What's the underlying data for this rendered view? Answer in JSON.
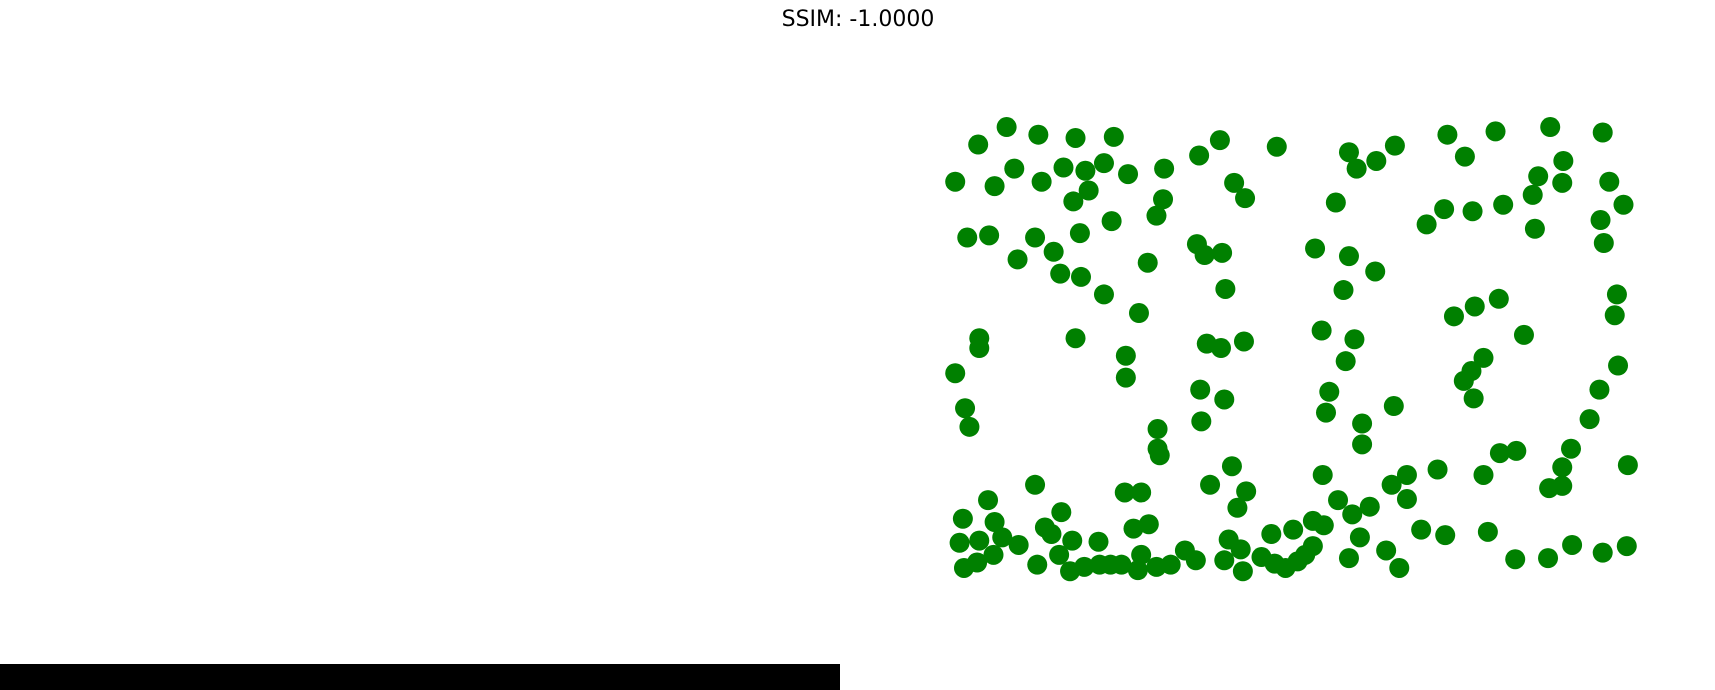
{
  "chart_data": {
    "type": "scatter",
    "title": "SSIM: -1.0000",
    "color": "#008000",
    "x": [
      873,
      894,
      920,
      949,
      983,
      1018,
      909,
      927,
      952,
      972,
      992,
      1009,
      1031,
      1064,
      995,
      981,
      1063,
      1057,
      1016,
      884,
      904,
      946,
      963,
      987,
      930,
      969,
      988,
      1049,
      1009,
      1041,
      895,
      895,
      983,
      873,
      1029,
      1029,
      882,
      886,
      1058,
      1058,
      1060,
      1096,
      1115,
      1167,
      1128,
      1138,
      1094,
      1101,
      1117,
      1120,
      1103,
      1116,
      1137,
      1097,
      1119,
      1098,
      1233,
      1240,
      1258,
      1275,
      1221,
      1202,
      1233,
      1257,
      1228,
      1208,
      1238,
      1230,
      1215,
      1212,
      1274,
      1245,
      1245,
      1323,
      1339,
      1367,
      1417,
      1465,
      1429,
      1406,
      1428,
      1471,
      1401,
      1484,
      1463,
      1403,
      1466,
      1374,
      1346,
      1320,
      1304,
      1329,
      1348,
      1370,
      1393,
      1478,
      1476,
      1356,
      1345,
      1338,
      1347,
      1479,
      1462,
      1453,
      1436,
      1428,
      1386,
      1371,
      1356,
      1428,
      1416,
      1488,
      946,
      903,
      880,
      909,
      970,
      955,
      961,
      916,
      895,
      877,
      931,
      908,
      893,
      881,
      948,
      968,
      980,
      1004,
      978,
      991,
      1005,
      1015,
      1025,
      1040,
      1043,
      1057,
      1070,
      1036,
      1050,
      1028,
      1043,
      1083,
      1093,
      1106,
      1126,
      1139,
      1131,
      1123,
      1134,
      1119,
      1136,
      1153,
      1165,
      1175,
      1186,
      1193,
      1200,
      1162,
      1182,
      1200,
      1210,
      1209,
      1223,
      1236,
      1252,
      1243,
      1233,
      1267,
      1279,
      1272,
      1286,
      1286,
      1314,
      1299,
      1321,
      1360,
      1385,
      1415,
      1437,
      1465,
      1487
    ],
    "values": [
      166,
      132,
      116,
      123,
      126,
      125,
      170,
      154,
      166,
      153,
      156,
      149,
      159,
      154,
      174,
      184,
      182,
      197,
      202,
      217,
      215,
      217,
      230,
      213,
      237,
      250,
      253,
      240,
      269,
      286,
      309,
      318,
      309,
      341,
      325,
      345,
      373,
      390,
      392,
      410,
      416,
      142,
      128,
      134,
      167,
      181,
      223,
      233,
      231,
      264,
      314,
      318,
      312,
      356,
      365,
      385,
      139,
      154,
      147,
      133,
      185,
      227,
      234,
      248,
      265,
      302,
      310,
      330,
      358,
      377,
      371,
      387,
      406,
      123,
      143,
      120,
      116,
      121,
      147,
      161,
      167,
      166,
      178,
      187,
      201,
      209,
      222,
      187,
      193,
      191,
      205,
      289,
      280,
      273,
      306,
      269,
      288,
      327,
      339,
      348,
      364,
      334,
      356,
      383,
      410,
      427,
      412,
      414,
      434,
      444,
      446,
      425,
      443,
      457,
      474,
      477,
      468,
      482,
      488,
      491,
      494,
      496,
      498,
      507,
      514,
      519,
      516,
      507,
      494,
      495,
      522,
      518,
      516,
      516,
      516,
      521,
      507,
      518,
      516,
      483,
      479,
      450,
      450,
      503,
      512,
      443,
      426,
      449,
      464,
      493,
      502,
      512,
      522,
      509,
      515,
      519,
      513,
      507,
      499,
      488,
      484,
      476,
      480,
      434,
      457,
      470,
      463,
      491,
      510,
      503,
      519,
      443,
      434,
      456,
      429,
      484,
      489,
      486,
      511,
      510,
      498,
      505,
      499
    ],
    "xlim": [
      860,
      1500
    ],
    "ylim": [
      530,
      105
    ]
  }
}
